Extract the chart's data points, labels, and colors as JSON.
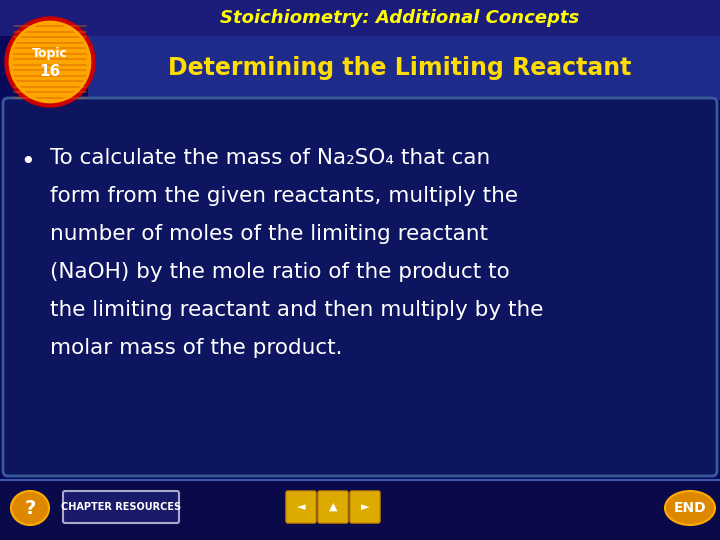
{
  "bg_dark": "#0a0a5a",
  "title_text": "Stoichiometry: Additional Concepts",
  "title_color": "#ffff00",
  "subtitle_text": "Determining the Limiting Reactant",
  "subtitle_color": "#ffdd00",
  "bullet_color": "#ffffff",
  "footer_text": "CHAPTER RESOURCES",
  "end_text": "END",
  "lines": [
    "To calculate the mass of Na₂SO₄ that can",
    "form from the given reactants, multiply the",
    "number of moles of the limiting reactant",
    "(NaOH) by the mole ratio of the product to",
    "the limiting reactant and then multiply by the",
    "molar mass of the product."
  ]
}
